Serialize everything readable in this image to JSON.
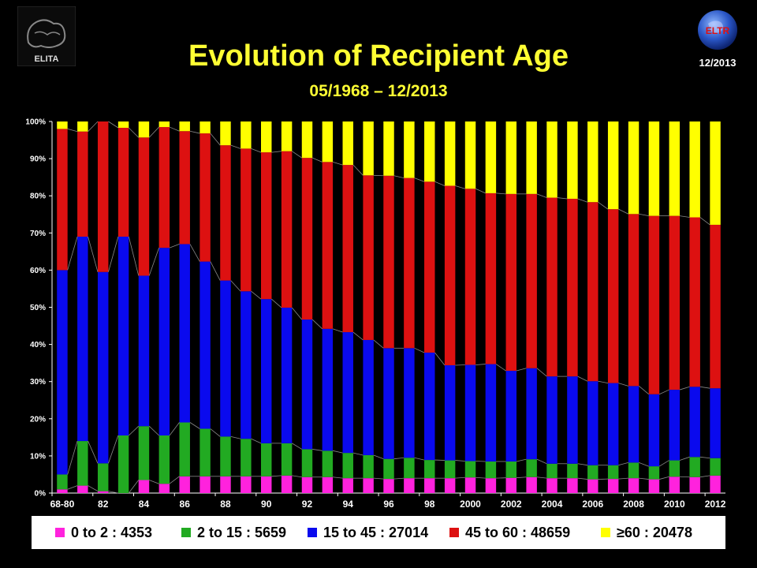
{
  "header": {
    "date_stamp": "12/2013"
  },
  "chart_data": {
    "type": "bar",
    "stacked": true,
    "percent_stacked": true,
    "title": "Evolution of Recipient Age",
    "subtitle": "05/1968 – 12/2013",
    "xlabel": "",
    "ylabel": "",
    "ylim": [
      0,
      100
    ],
    "y_ticks": [
      "0%",
      "10%",
      "20%",
      "30%",
      "40%",
      "50%",
      "60%",
      "70%",
      "80%",
      "90%",
      "100%"
    ],
    "x_tick_labels": [
      "68-80",
      "82",
      "84",
      "86",
      "88",
      "90",
      "92",
      "94",
      "96",
      "98",
      "2000",
      "2002",
      "2004",
      "2006",
      "2008",
      "2010",
      "2012"
    ],
    "categories": [
      "68-80",
      "81",
      "82",
      "83",
      "84",
      "85",
      "86",
      "87",
      "88",
      "89",
      "90",
      "91",
      "92",
      "93",
      "94",
      "95",
      "96",
      "97",
      "98",
      "99",
      "2000",
      "2001",
      "2002",
      "2003",
      "2004",
      "2005",
      "2006",
      "2007",
      "2008",
      "2009",
      "2010",
      "2011",
      "2012"
    ],
    "grid": false,
    "background": "#000000",
    "connector_lines": true,
    "legend_position": "bottom",
    "series": [
      {
        "name": "0 to 2",
        "total": "4353",
        "color": "#ff22dd",
        "values": [
          1.0,
          2.0,
          0.5,
          0.0,
          3.5,
          2.5,
          4.5,
          4.5,
          4.5,
          4.5,
          4.5,
          4.7,
          4.3,
          4.3,
          4.0,
          4.0,
          3.8,
          4.0,
          4.0,
          4.0,
          4.2,
          4.0,
          4.1,
          4.3,
          4.0,
          4.0,
          3.7,
          3.8,
          4.0,
          3.7,
          4.4,
          4.3,
          4.7
        ]
      },
      {
        "name": "2 to 15",
        "total": "5659",
        "color": "#22aa22",
        "values": [
          4.0,
          12.0,
          7.5,
          15.5,
          14.5,
          13.0,
          14.5,
          12.8,
          10.7,
          10.1,
          8.9,
          8.7,
          7.5,
          7.1,
          6.8,
          6.2,
          5.4,
          5.5,
          4.9,
          4.8,
          4.4,
          4.5,
          4.4,
          4.8,
          3.9,
          3.9,
          3.8,
          3.7,
          4.2,
          3.5,
          4.4,
          5.4,
          4.7
        ]
      },
      {
        "name": "15 to 45",
        "total": "27014",
        "color": "#0a0aee",
        "values": [
          55.0,
          55.0,
          51.5,
          53.5,
          40.5,
          50.5,
          48.0,
          45.0,
          42.0,
          39.7,
          38.8,
          36.5,
          34.9,
          32.8,
          32.5,
          31.0,
          29.8,
          29.5,
          28.9,
          25.6,
          25.9,
          26.2,
          24.4,
          24.5,
          23.5,
          23.5,
          22.6,
          22.1,
          20.6,
          19.4,
          19.0,
          18.9,
          18.8
        ]
      },
      {
        "name": "45 to 60",
        "total": "48659",
        "color": "#dd1111",
        "values": [
          38.0,
          28.3,
          40.5,
          29.3,
          37.2,
          32.5,
          30.4,
          34.5,
          36.4,
          38.4,
          39.5,
          42.1,
          43.5,
          44.9,
          45.0,
          44.3,
          46.4,
          45.8,
          46.0,
          48.3,
          47.4,
          46.0,
          47.6,
          46.9,
          48.1,
          47.8,
          48.2,
          46.8,
          46.3,
          48.0,
          46.8,
          45.6,
          44.0
        ]
      },
      {
        "name": "≥60",
        "total": "20478",
        "color": "#ffff00",
        "values": [
          2.0,
          2.7,
          0.0,
          1.7,
          4.3,
          1.5,
          2.6,
          3.2,
          6.4,
          7.3,
          8.3,
          8.0,
          9.8,
          10.9,
          11.7,
          14.5,
          14.6,
          15.2,
          16.2,
          17.3,
          18.1,
          19.3,
          19.5,
          19.5,
          20.5,
          20.8,
          21.7,
          23.6,
          24.9,
          25.4,
          25.4,
          25.8,
          27.8
        ]
      }
    ]
  }
}
